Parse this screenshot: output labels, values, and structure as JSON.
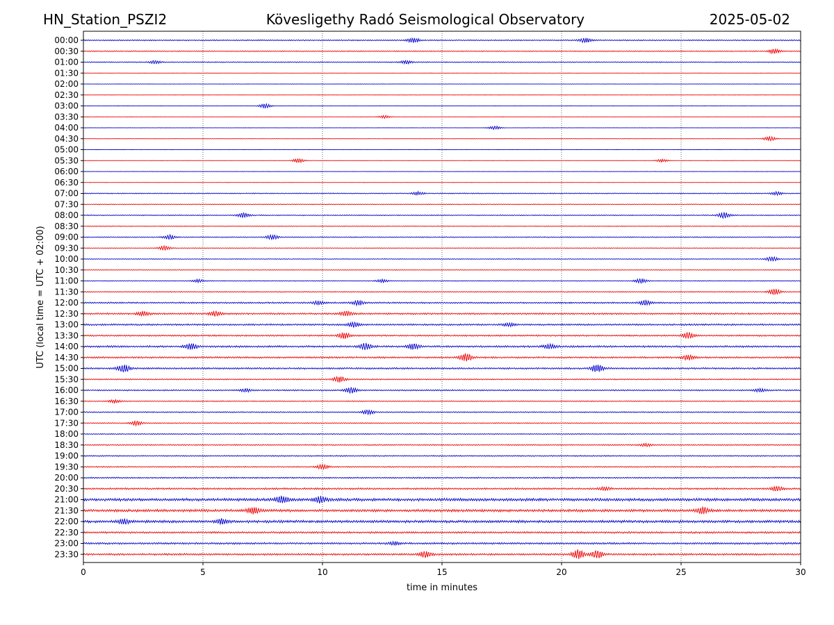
{
  "chart_data": {
    "type": "line",
    "station_title": "HN_Station_PSZI2",
    "title": "Kövesligethy Radó Seismological Observatory",
    "date": "2025-05-02",
    "xlabel": "time in minutes",
    "ylabel": "UTC (local time = UTC + 02:00)",
    "xlim": [
      0,
      30
    ],
    "x_ticks": [
      "0",
      "5",
      "10",
      "15",
      "20",
      "25",
      "30"
    ],
    "x_tick_values": [
      0,
      5,
      10,
      15,
      20,
      25,
      30
    ],
    "grid": "vertical dotted lines at every 5 minutes",
    "trace_colors": [
      "#0000cc",
      "#ee0000"
    ],
    "rows": [
      "00:00",
      "00:30",
      "01:00",
      "01:30",
      "02:00",
      "02:30",
      "03:00",
      "03:30",
      "04:00",
      "04:30",
      "05:00",
      "05:30",
      "06:00",
      "06:30",
      "07:00",
      "07:30",
      "08:00",
      "08:30",
      "09:00",
      "09:30",
      "10:00",
      "10:30",
      "11:00",
      "11:30",
      "12:00",
      "12:30",
      "13:00",
      "13:30",
      "14:00",
      "14:30",
      "15:00",
      "15:30",
      "16:00",
      "16:30",
      "17:00",
      "17:30",
      "18:00",
      "18:30",
      "19:00",
      "19:30",
      "20:00",
      "20:30",
      "21:00",
      "21:30",
      "22:00",
      "22:30",
      "23:00",
      "23:30"
    ],
    "noise_level": [
      0.6,
      0.5,
      0.5,
      0.15,
      0.15,
      0.12,
      0.12,
      0.15,
      0.15,
      0.2,
      0.1,
      0.15,
      0.2,
      0.12,
      0.5,
      0.4,
      0.5,
      0.4,
      0.5,
      0.35,
      0.4,
      0.35,
      0.4,
      0.5,
      0.8,
      0.9,
      0.9,
      0.8,
      1.0,
      0.9,
      0.9,
      0.6,
      0.7,
      0.5,
      0.6,
      0.5,
      0.5,
      0.6,
      0.6,
      0.6,
      0.7,
      0.9,
      1.5,
      1.4,
      1.4,
      1.0,
      1.0,
      1.0
    ],
    "events": [
      {
        "row": 0,
        "t": 13.8,
        "amp": 3
      },
      {
        "row": 0,
        "t": 21.0,
        "amp": 3
      },
      {
        "row": 1,
        "t": 28.9,
        "amp": 3
      },
      {
        "row": 2,
        "t": 3.0,
        "amp": 2
      },
      {
        "row": 2,
        "t": 13.5,
        "amp": 2
      },
      {
        "row": 6,
        "t": 7.6,
        "amp": 3
      },
      {
        "row": 7,
        "t": 12.6,
        "amp": 2
      },
      {
        "row": 8,
        "t": 17.2,
        "amp": 2.5
      },
      {
        "row": 9,
        "t": 28.7,
        "amp": 3
      },
      {
        "row": 11,
        "t": 9.0,
        "amp": 3
      },
      {
        "row": 11,
        "t": 24.2,
        "amp": 2
      },
      {
        "row": 14,
        "t": 14.0,
        "amp": 2
      },
      {
        "row": 14,
        "t": 29.0,
        "amp": 2
      },
      {
        "row": 16,
        "t": 6.7,
        "amp": 3
      },
      {
        "row": 16,
        "t": 26.8,
        "amp": 4
      },
      {
        "row": 18,
        "t": 3.6,
        "amp": 3
      },
      {
        "row": 18,
        "t": 7.9,
        "amp": 3
      },
      {
        "row": 19,
        "t": 3.4,
        "amp": 3
      },
      {
        "row": 20,
        "t": 28.8,
        "amp": 3
      },
      {
        "row": 22,
        "t": 4.8,
        "amp": 2
      },
      {
        "row": 22,
        "t": 12.5,
        "amp": 2
      },
      {
        "row": 22,
        "t": 23.3,
        "amp": 3
      },
      {
        "row": 23,
        "t": 28.9,
        "amp": 4
      },
      {
        "row": 24,
        "t": 9.8,
        "amp": 2
      },
      {
        "row": 24,
        "t": 11.5,
        "amp": 3
      },
      {
        "row": 24,
        "t": 23.5,
        "amp": 3
      },
      {
        "row": 25,
        "t": 2.5,
        "amp": 3
      },
      {
        "row": 25,
        "t": 5.5,
        "amp": 3
      },
      {
        "row": 25,
        "t": 11.0,
        "amp": 3
      },
      {
        "row": 26,
        "t": 11.3,
        "amp": 3
      },
      {
        "row": 26,
        "t": 17.8,
        "amp": 2
      },
      {
        "row": 27,
        "t": 10.9,
        "amp": 4
      },
      {
        "row": 27,
        "t": 25.3,
        "amp": 4
      },
      {
        "row": 28,
        "t": 4.5,
        "amp": 4
      },
      {
        "row": 28,
        "t": 11.8,
        "amp": 4
      },
      {
        "row": 28,
        "t": 13.8,
        "amp": 4
      },
      {
        "row": 28,
        "t": 19.5,
        "amp": 3
      },
      {
        "row": 29,
        "t": 16.0,
        "amp": 5
      },
      {
        "row": 29,
        "t": 25.3,
        "amp": 3
      },
      {
        "row": 30,
        "t": 1.7,
        "amp": 5
      },
      {
        "row": 30,
        "t": 21.5,
        "amp": 5
      },
      {
        "row": 31,
        "t": 10.7,
        "amp": 4
      },
      {
        "row": 32,
        "t": 6.8,
        "amp": 2
      },
      {
        "row": 32,
        "t": 11.2,
        "amp": 4
      },
      {
        "row": 32,
        "t": 28.3,
        "amp": 2
      },
      {
        "row": 33,
        "t": 1.3,
        "amp": 2
      },
      {
        "row": 34,
        "t": 11.9,
        "amp": 3
      },
      {
        "row": 35,
        "t": 2.2,
        "amp": 3
      },
      {
        "row": 37,
        "t": 23.5,
        "amp": 2
      },
      {
        "row": 39,
        "t": 10.0,
        "amp": 3
      },
      {
        "row": 41,
        "t": 21.8,
        "amp": 2
      },
      {
        "row": 41,
        "t": 29.0,
        "amp": 3
      },
      {
        "row": 42,
        "t": 8.3,
        "amp": 4
      },
      {
        "row": 42,
        "t": 9.9,
        "amp": 4
      },
      {
        "row": 43,
        "t": 7.1,
        "amp": 4
      },
      {
        "row": 43,
        "t": 25.9,
        "amp": 4
      },
      {
        "row": 44,
        "t": 1.7,
        "amp": 3
      },
      {
        "row": 44,
        "t": 5.8,
        "amp": 3
      },
      {
        "row": 46,
        "t": 13.0,
        "amp": 2
      },
      {
        "row": 47,
        "t": 14.3,
        "amp": 4
      },
      {
        "row": 47,
        "t": 20.7,
        "amp": 6
      },
      {
        "row": 47,
        "t": 21.5,
        "amp": 5
      }
    ]
  }
}
